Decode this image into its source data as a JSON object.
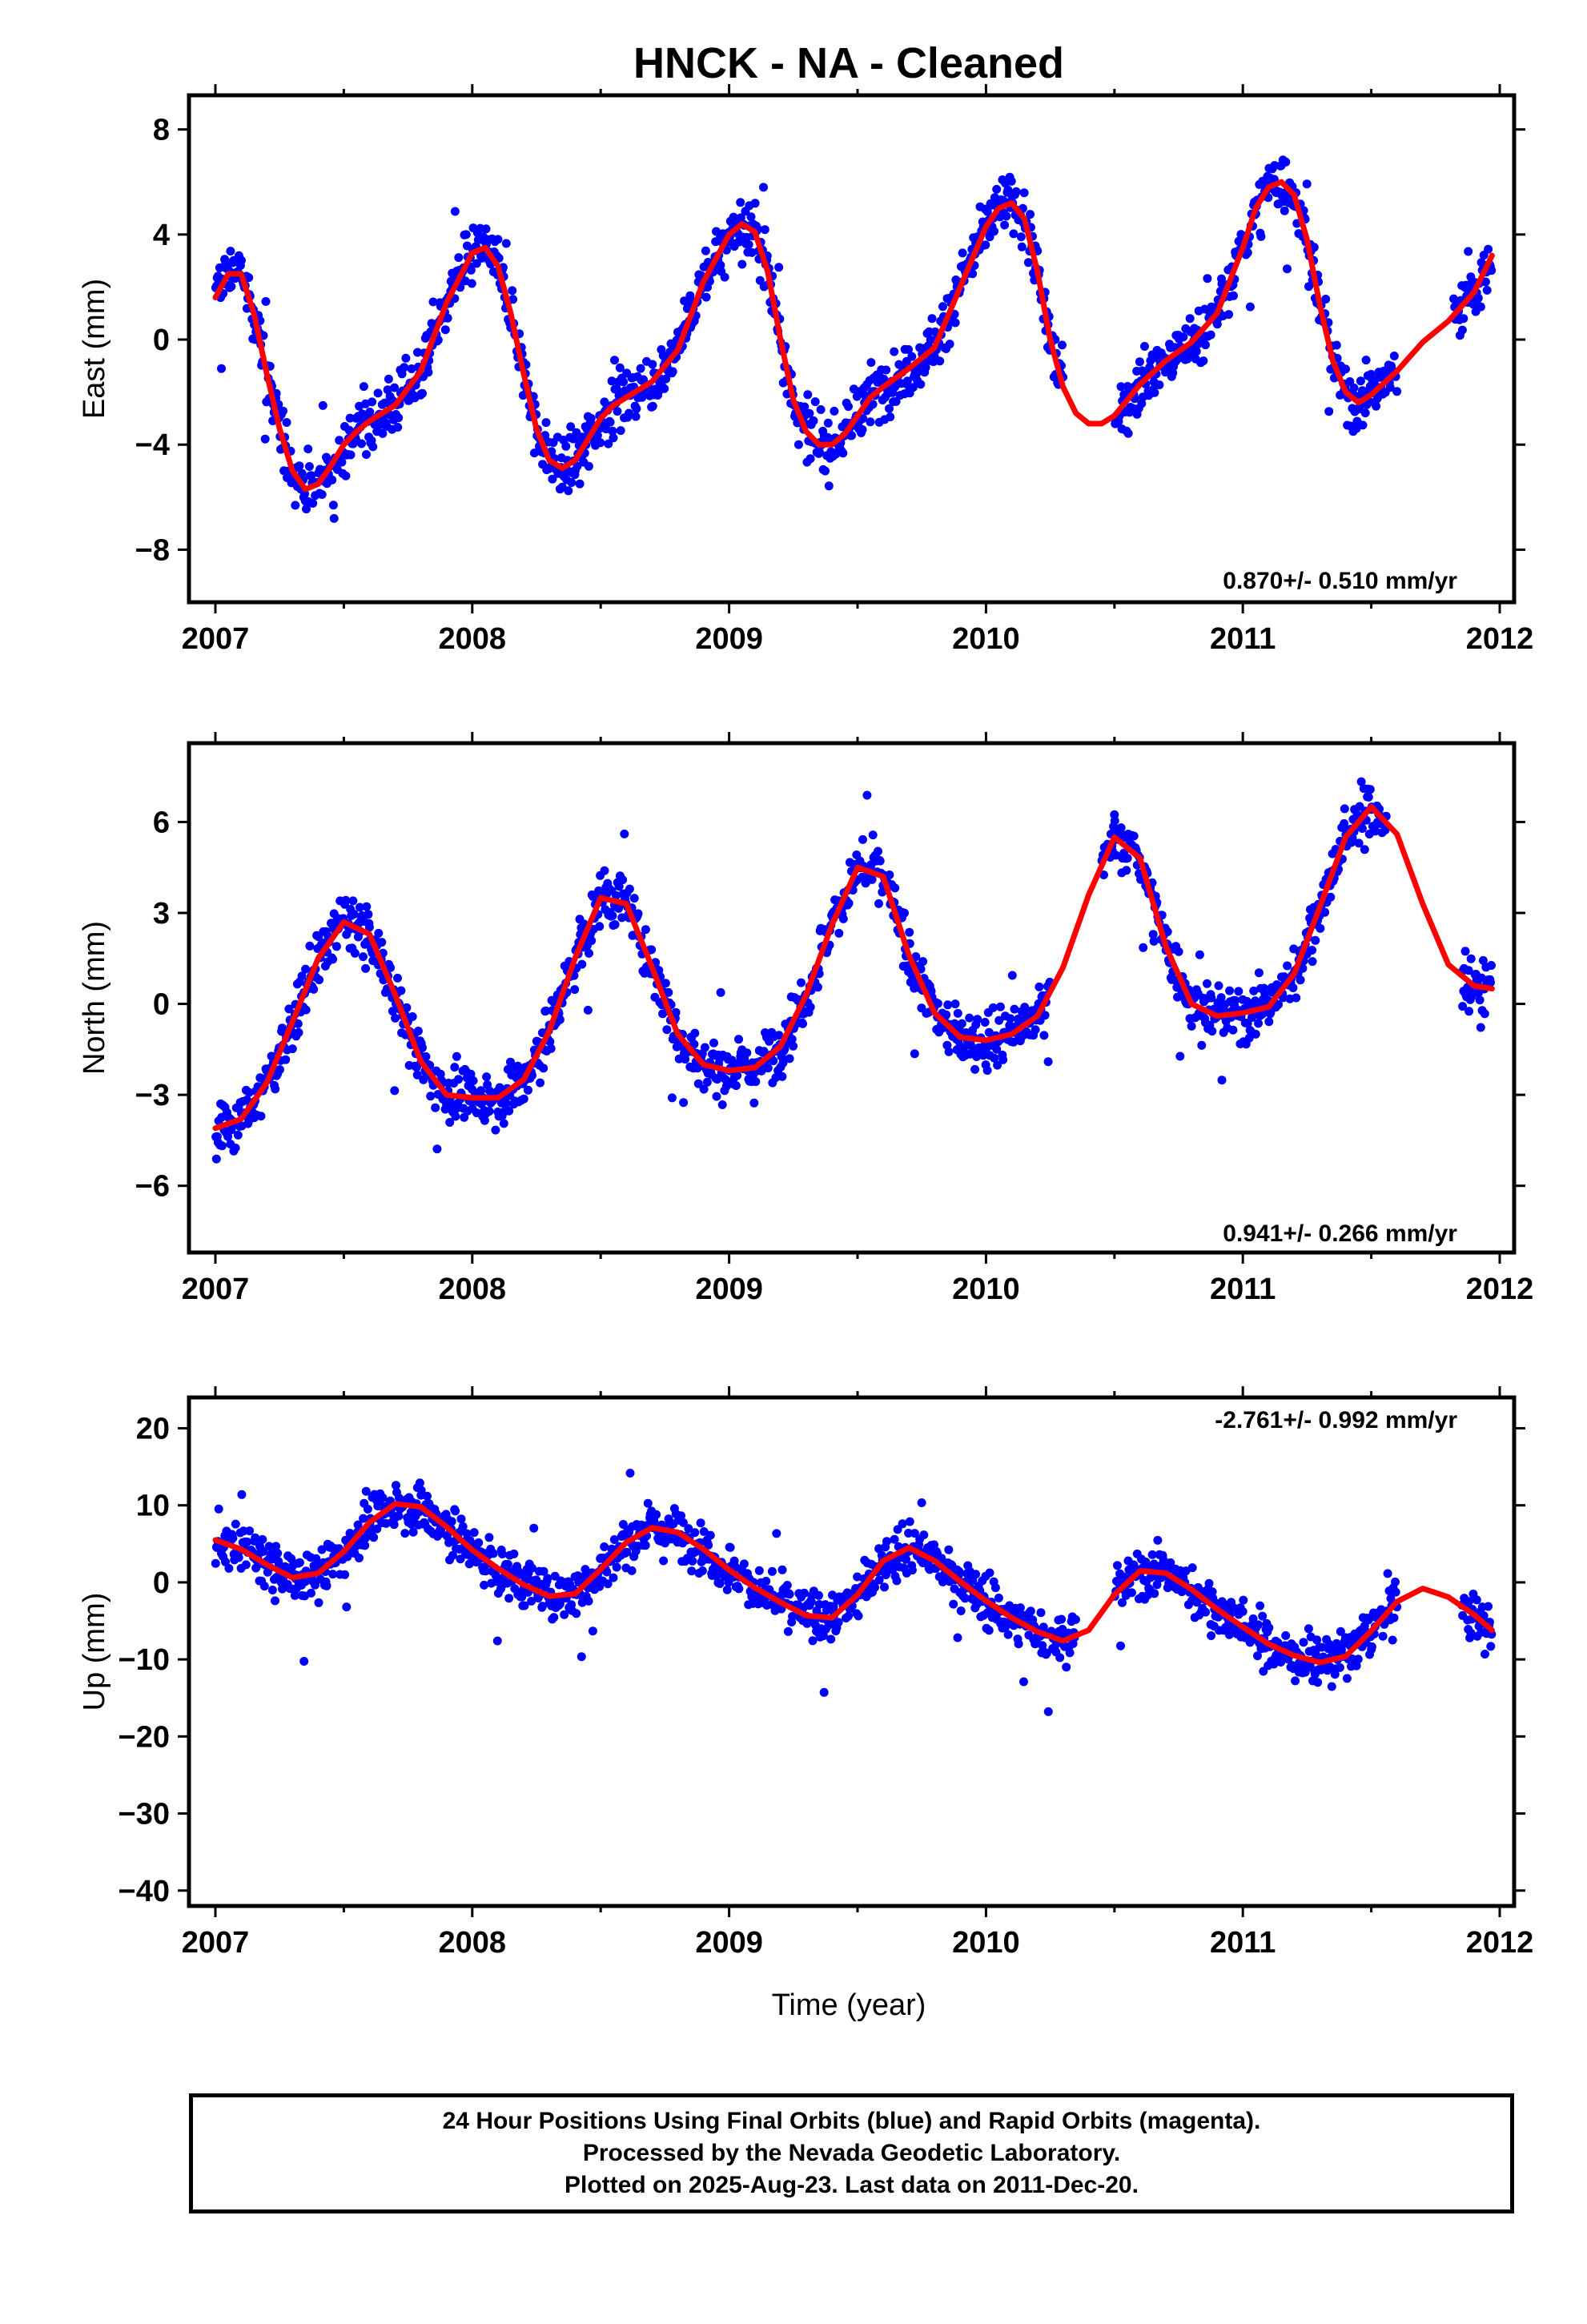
{
  "chart_data": {
    "type": "scatter",
    "title": "HNCK  - NA - Cleaned",
    "xlabel": "Time (year)",
    "xlim": [
      2007,
      2012
    ],
    "xticks": [
      "2007",
      "2008",
      "2009",
      "2010",
      "2011",
      "2012"
    ],
    "point_color": "#0000ff",
    "model_color": "#ff0000",
    "panels": [
      {
        "name": "east",
        "ylabel": "East (mm)",
        "ylim": [
          -10,
          9.3
        ],
        "yticks": [
          8,
          4,
          0,
          -4,
          -8
        ],
        "ytick_labels": [
          "8",
          "4",
          "0",
          "−4",
          "−8"
        ],
        "rate": "0.870+/- 0.510 mm/yr",
        "model_x": [
          2007.0,
          2007.05,
          2007.1,
          2007.15,
          2007.2,
          2007.25,
          2007.3,
          2007.35,
          2007.4,
          2007.45,
          2007.5,
          2007.55,
          2007.6,
          2007.7,
          2007.8,
          2007.9,
          2008.0,
          2008.05,
          2008.1,
          2008.15,
          2008.2,
          2008.25,
          2008.3,
          2008.35,
          2008.4,
          2008.45,
          2008.5,
          2008.55,
          2008.6,
          2008.7,
          2008.8,
          2008.9,
          2009.0,
          2009.05,
          2009.1,
          2009.15,
          2009.2,
          2009.25,
          2009.3,
          2009.35,
          2009.4,
          2009.45,
          2009.5,
          2009.55,
          2009.6,
          2009.7,
          2009.8,
          2009.9,
          2010.0,
          2010.05,
          2010.1,
          2010.15,
          2010.2,
          2010.25,
          2010.3,
          2010.35,
          2010.4,
          2010.45,
          2010.5,
          2010.6,
          2010.7,
          2010.8,
          2010.9,
          2011.0,
          2011.05,
          2011.1,
          2011.15,
          2011.2,
          2011.25,
          2011.3,
          2011.35,
          2011.4,
          2011.45,
          2011.5,
          2011.6,
          2011.7,
          2011.8,
          2011.9,
          2011.97
        ],
        "model_y": [
          1.6,
          2.5,
          2.5,
          1.0,
          -1.3,
          -3.4,
          -5.0,
          -5.7,
          -5.5,
          -4.8,
          -4.0,
          -3.5,
          -3.1,
          -2.5,
          -1.2,
          1.4,
          3.3,
          3.5,
          2.8,
          1.0,
          -1.3,
          -3.4,
          -4.6,
          -4.9,
          -4.6,
          -3.8,
          -3.0,
          -2.5,
          -2.2,
          -1.6,
          -0.4,
          2.2,
          4.0,
          4.4,
          4.1,
          2.6,
          0.0,
          -2.3,
          -3.5,
          -4.0,
          -4.0,
          -3.6,
          -2.9,
          -2.2,
          -1.8,
          -1.1,
          -0.3,
          2.0,
          4.3,
          5.0,
          5.2,
          4.6,
          2.6,
          0.0,
          -1.8,
          -2.8,
          -3.2,
          -3.2,
          -2.9,
          -1.7,
          -0.8,
          -0.1,
          1.0,
          3.5,
          5.0,
          5.8,
          6.0,
          5.5,
          3.8,
          1.3,
          -0.8,
          -2.0,
          -2.4,
          -2.1,
          -1.2,
          -0.1,
          0.7,
          1.8,
          3.2
        ]
      },
      {
        "name": "north",
        "ylabel": "North (mm)",
        "ylim": [
          -8.2,
          8.6
        ],
        "yticks": [
          6,
          3,
          0,
          -3,
          -6
        ],
        "ytick_labels": [
          "6",
          "3",
          "0",
          "−3",
          "−6"
        ],
        "rate": "0.941+/- 0.266 mm/yr",
        "model_x": [
          2007.0,
          2007.1,
          2007.2,
          2007.3,
          2007.4,
          2007.5,
          2007.6,
          2007.7,
          2007.8,
          2007.9,
          2008.0,
          2008.1,
          2008.2,
          2008.3,
          2008.4,
          2008.5,
          2008.6,
          2008.7,
          2008.8,
          2008.9,
          2009.0,
          2009.1,
          2009.2,
          2009.3,
          2009.4,
          2009.5,
          2009.6,
          2009.7,
          2009.8,
          2009.9,
          2010.0,
          2010.1,
          2010.2,
          2010.3,
          2010.4,
          2010.5,
          2010.6,
          2010.7,
          2010.8,
          2010.9,
          2011.0,
          2011.1,
          2011.2,
          2011.3,
          2011.4,
          2011.5,
          2011.6,
          2011.7,
          2011.8,
          2011.9,
          2011.97
        ],
        "model_y": [
          -4.1,
          -3.8,
          -2.6,
          -0.6,
          1.5,
          2.7,
          2.3,
          0.3,
          -1.9,
          -3.0,
          -3.1,
          -3.1,
          -2.5,
          -0.9,
          1.5,
          3.5,
          3.3,
          1.2,
          -1.0,
          -2.0,
          -2.2,
          -2.1,
          -1.4,
          0.3,
          2.6,
          4.5,
          4.2,
          1.6,
          -0.3,
          -1.1,
          -1.2,
          -1.0,
          -0.4,
          1.2,
          3.6,
          5.5,
          4.8,
          1.9,
          0.0,
          -0.4,
          -0.3,
          -0.1,
          1.0,
          3.2,
          5.5,
          6.5,
          5.6,
          3.3,
          1.3,
          0.6,
          0.5
        ]
      },
      {
        "name": "up",
        "ylabel": "Up (mm)",
        "ylim": [
          -42,
          24
        ],
        "yticks": [
          20,
          10,
          0,
          -10,
          -20,
          -30,
          -40
        ],
        "ytick_labels": [
          "20",
          "10",
          "0",
          "−10",
          "−20",
          "−30",
          "−40"
        ],
        "rate": "-2.761+/- 0.992 mm/yr",
        "model_x": [
          2007.0,
          2007.1,
          2007.2,
          2007.3,
          2007.4,
          2007.5,
          2007.6,
          2007.7,
          2007.8,
          2007.9,
          2008.0,
          2008.1,
          2008.2,
          2008.3,
          2008.4,
          2008.5,
          2008.6,
          2008.7,
          2008.8,
          2008.9,
          2009.0,
          2009.1,
          2009.2,
          2009.3,
          2009.4,
          2009.5,
          2009.6,
          2009.7,
          2009.8,
          2009.9,
          2010.0,
          2010.1,
          2010.2,
          2010.3,
          2010.4,
          2010.5,
          2010.6,
          2010.7,
          2010.8,
          2010.9,
          2011.0,
          2011.1,
          2011.2,
          2011.3,
          2011.4,
          2011.5,
          2011.6,
          2011.7,
          2011.8,
          2011.9,
          2011.97
        ],
        "model_y": [
          5.5,
          4.3,
          2.3,
          0.6,
          1.2,
          4.0,
          7.8,
          10.2,
          9.8,
          7.2,
          4.2,
          1.8,
          -0.3,
          -1.8,
          -1.5,
          1.7,
          5.2,
          7.1,
          6.5,
          4.3,
          1.6,
          -0.7,
          -2.6,
          -4.3,
          -4.6,
          -1.6,
          2.8,
          4.5,
          2.8,
          0.1,
          -2.4,
          -4.6,
          -6.4,
          -7.6,
          -6.2,
          -1.6,
          1.5,
          1.2,
          -0.9,
          -3.5,
          -5.8,
          -8.0,
          -9.5,
          -10.4,
          -9.6,
          -6.3,
          -2.5,
          -0.8,
          -1.9,
          -4.2,
          -6.2
        ]
      }
    ]
  },
  "footer": {
    "line1": "24 Hour Positions Using Final Orbits (blue) and Rapid Orbits (magenta).",
    "line2": "Processed by the Nevada Geodetic Laboratory.",
    "line3": "Plotted on 2025-Aug-23. Last data on 2011-Dec-20."
  }
}
